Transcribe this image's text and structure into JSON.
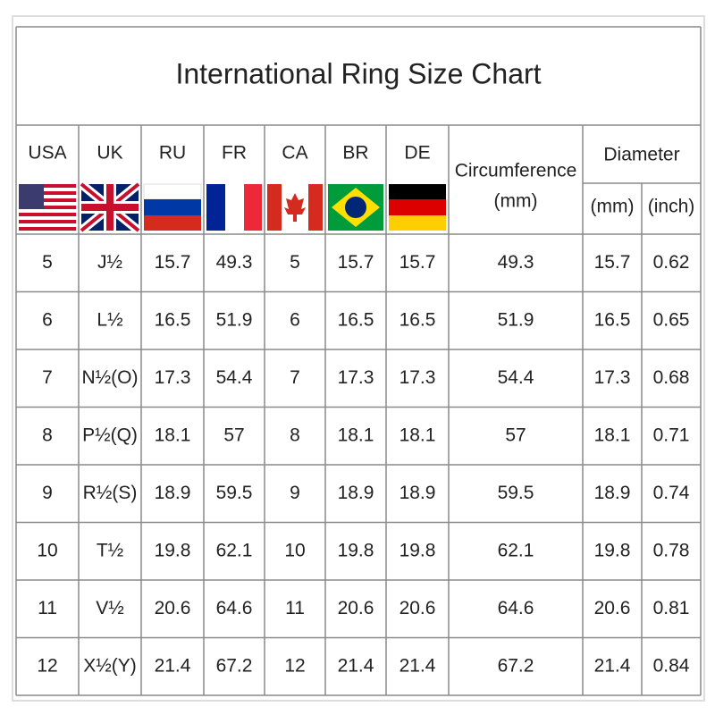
{
  "title": "International Ring Size Chart",
  "columns": [
    "USA",
    "UK",
    "RU",
    "FR",
    "CA",
    "BR",
    "DE"
  ],
  "circumference": {
    "label": "Circumference",
    "unit": "(mm)"
  },
  "diameter": {
    "label": "Diameter",
    "units": [
      "(mm)",
      "(inch)"
    ]
  },
  "rows": [
    [
      "5",
      "J½",
      "15.7",
      "49.3",
      "5",
      "15.7",
      "15.7",
      "49.3",
      "15.7",
      "0.62"
    ],
    [
      "6",
      "L½",
      "16.5",
      "51.9",
      "6",
      "16.5",
      "16.5",
      "51.9",
      "16.5",
      "0.65"
    ],
    [
      "7",
      "N½(O)",
      "17.3",
      "54.4",
      "7",
      "17.3",
      "17.3",
      "54.4",
      "17.3",
      "0.68"
    ],
    [
      "8",
      "P½(Q)",
      "18.1",
      "57",
      "8",
      "18.1",
      "18.1",
      "57",
      "18.1",
      "0.71"
    ],
    [
      "9",
      "R½(S)",
      "18.9",
      "59.5",
      "9",
      "18.9",
      "18.9",
      "59.5",
      "18.9",
      "0.74"
    ],
    [
      "10",
      "T½",
      "19.8",
      "62.1",
      "10",
      "19.8",
      "19.8",
      "62.1",
      "19.8",
      "0.78"
    ],
    [
      "11",
      "V½",
      "20.6",
      "64.6",
      "11",
      "20.6",
      "20.6",
      "64.6",
      "20.6",
      "0.81"
    ],
    [
      "12",
      "X½(Y)",
      "21.4",
      "67.2",
      "12",
      "21.4",
      "21.4",
      "67.2",
      "21.4",
      "0.84"
    ]
  ]
}
